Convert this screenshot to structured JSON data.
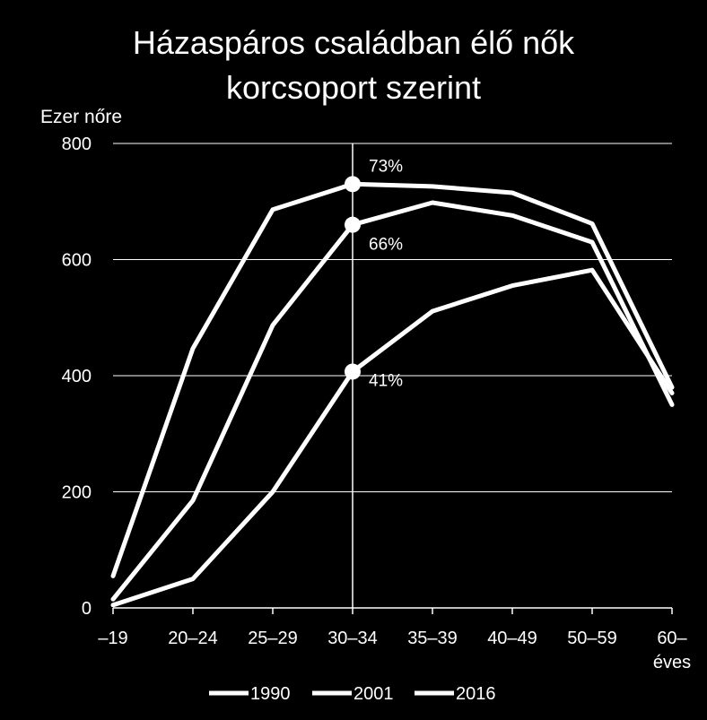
{
  "chart_data": {
    "type": "line",
    "title_lines": [
      "Házaspáros családban élő nők",
      "korcsoport szerint"
    ],
    "ylabel": "Ezer nőre",
    "categories": [
      "–19",
      "20–24",
      "25–29",
      "30–34",
      "35–39",
      "40–49",
      "50–59",
      "60–"
    ],
    "x_unit_label": "éves",
    "ylim": [
      0,
      800
    ],
    "yticks": [
      0,
      200,
      400,
      600,
      800
    ],
    "grid": true,
    "legend_position": "bottom",
    "series": [
      {
        "name": "1990",
        "values": [
          55,
          447,
          686,
          730,
          726,
          715,
          662,
          380
        ]
      },
      {
        "name": "2001",
        "values": [
          15,
          185,
          487,
          660,
          698,
          676,
          630,
          350
        ]
      },
      {
        "name": "2016",
        "values": [
          5,
          50,
          200,
          407,
          511,
          555,
          582,
          370
        ]
      }
    ],
    "highlight": {
      "category": "30–34",
      "points": [
        {
          "series": "1990",
          "value": 730,
          "label": "73%"
        },
        {
          "series": "2001",
          "value": 660,
          "label": "66%"
        },
        {
          "series": "2016",
          "value": 407,
          "label": "41%"
        }
      ]
    },
    "colors": {
      "line": "#ffffff",
      "background": "#000000",
      "grid": "#ffffff"
    }
  }
}
